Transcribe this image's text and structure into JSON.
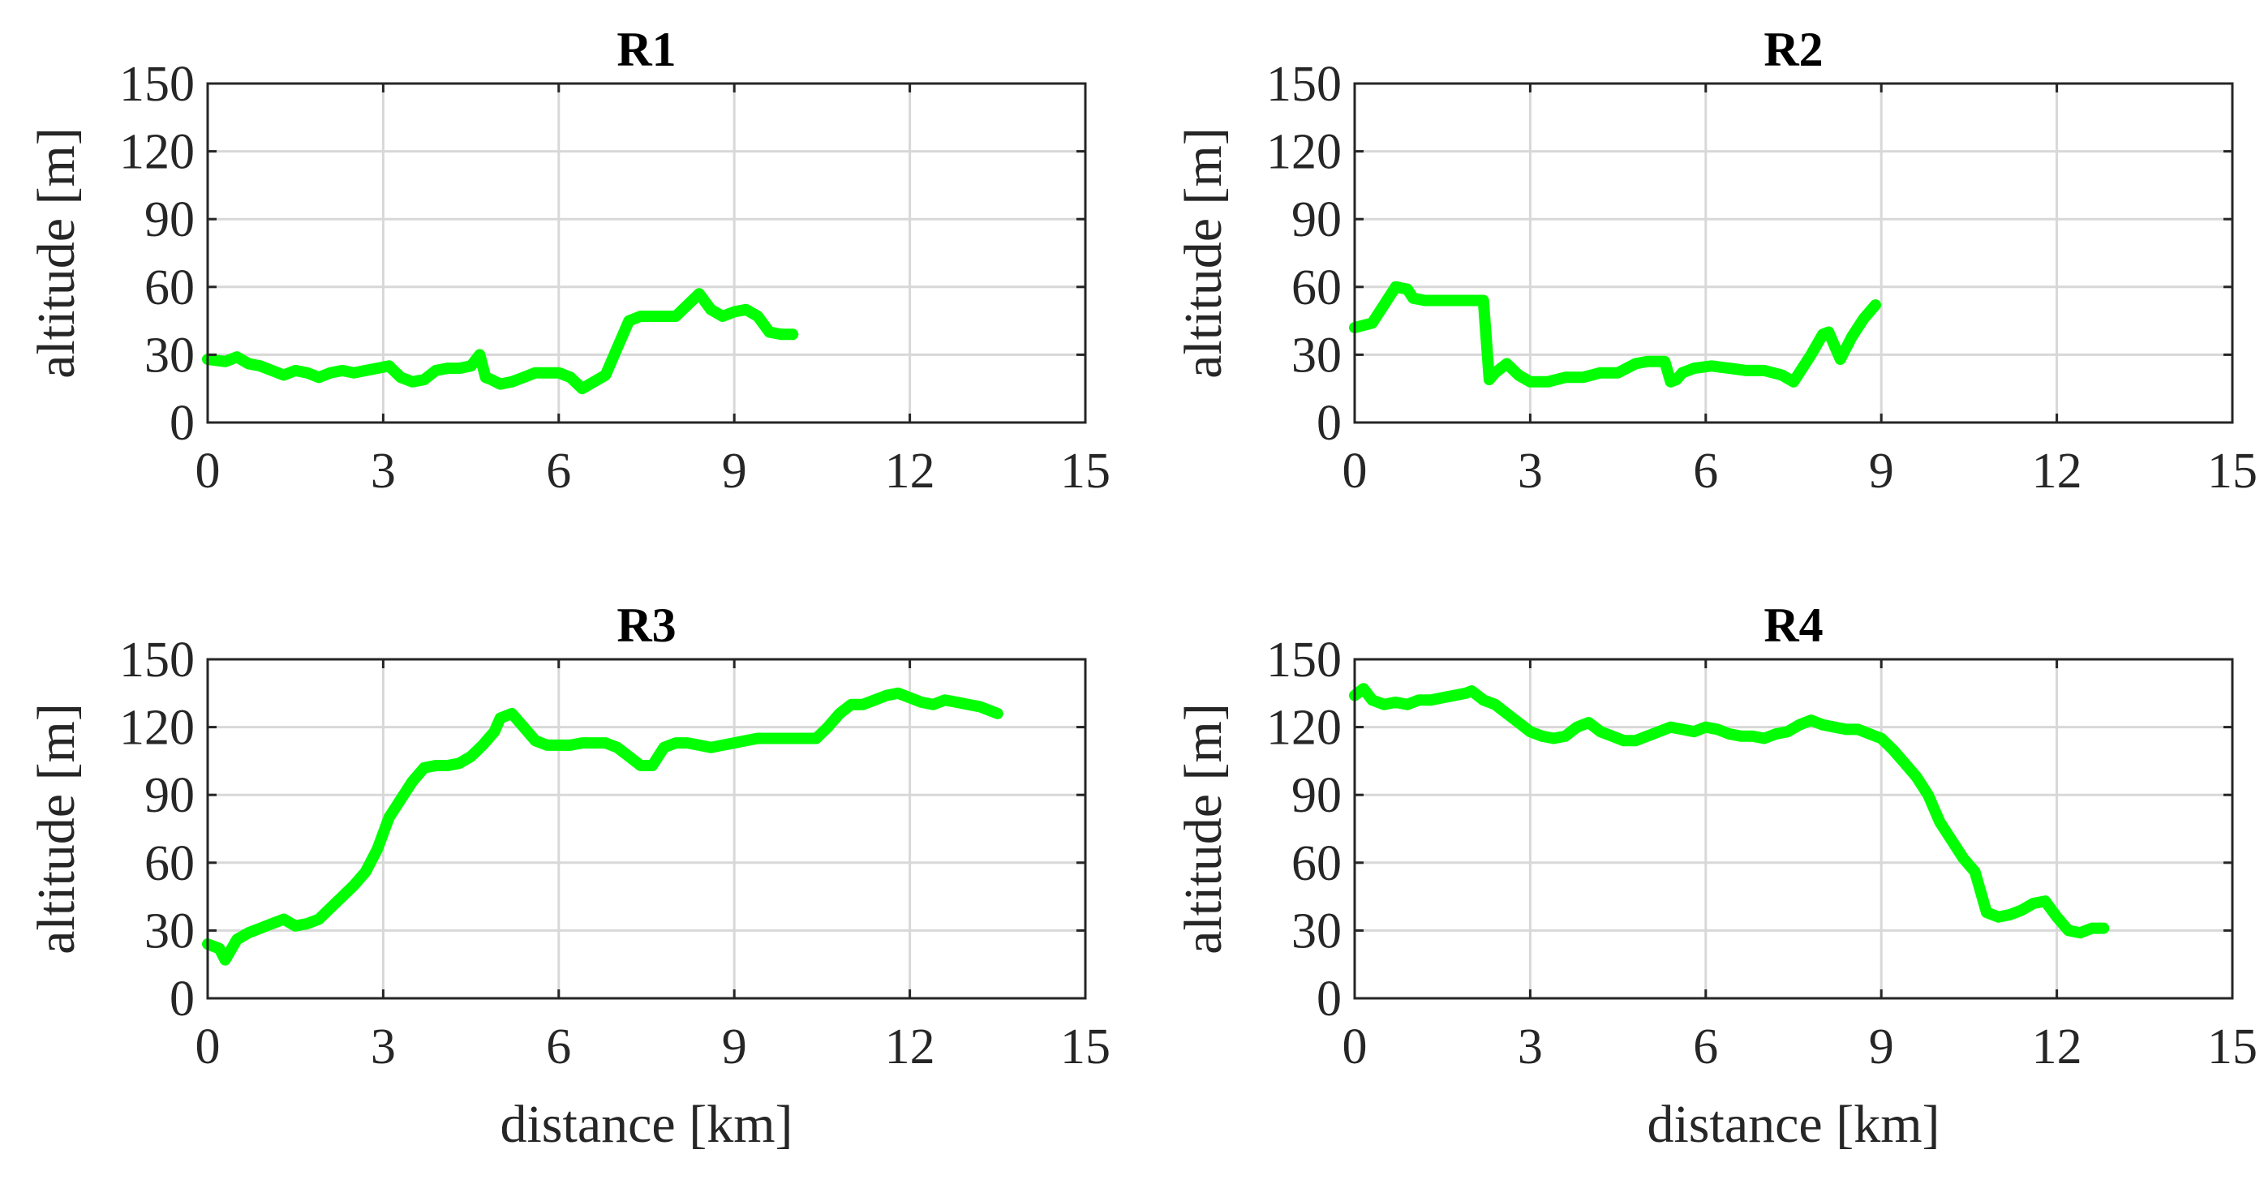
{
  "figure": {
    "background": "#ffffff",
    "line_color": "#00ff00"
  },
  "chart_data": [
    {
      "type": "line",
      "title": "R1",
      "xlabel": "",
      "ylabel": "altitude [m]",
      "xlim": [
        0,
        15
      ],
      "ylim": [
        0,
        150
      ],
      "xticks": [
        "0",
        "3",
        "6",
        "9",
        "12",
        "15"
      ],
      "yticks": [
        "0",
        "30",
        "60",
        "90",
        "120",
        "150"
      ],
      "grid": true,
      "series": [
        {
          "name": "R1",
          "x": [
            0,
            0.3,
            0.5,
            0.7,
            0.9,
            1.1,
            1.3,
            1.5,
            1.7,
            1.9,
            2.1,
            2.3,
            2.5,
            2.7,
            2.9,
            3.1,
            3.3,
            3.5,
            3.7,
            3.9,
            4.1,
            4.3,
            4.5,
            4.65,
            4.75,
            4.85,
            5.0,
            5.2,
            5.4,
            5.6,
            5.8,
            6.0,
            6.2,
            6.4,
            6.6,
            6.8,
            7.0,
            7.2,
            7.4,
            7.6,
            7.8,
            8.0,
            8.2,
            8.4,
            8.6,
            8.8,
            9.0,
            9.2,
            9.4,
            9.6,
            9.8,
            10.0
          ],
          "y": [
            28,
            27,
            29,
            26,
            25,
            23,
            21,
            23,
            22,
            20,
            22,
            23,
            22,
            23,
            24,
            25,
            20,
            18,
            19,
            23,
            24,
            24,
            25,
            30,
            20,
            19,
            17,
            18,
            20,
            22,
            22,
            22,
            20,
            15,
            18,
            21,
            33,
            45,
            47,
            47,
            47,
            47,
            52,
            57,
            50,
            47,
            49,
            50,
            47,
            40,
            39,
            39
          ]
        }
      ]
    },
    {
      "type": "line",
      "title": "R2",
      "xlabel": "",
      "ylabel": "altitude [m]",
      "xlim": [
        0,
        15
      ],
      "ylim": [
        0,
        150
      ],
      "xticks": [
        "0",
        "3",
        "6",
        "9",
        "12",
        "15"
      ],
      "yticks": [
        "0",
        "30",
        "60",
        "90",
        "120",
        "150"
      ],
      "grid": true,
      "series": [
        {
          "name": "R2",
          "x": [
            0,
            0.3,
            0.5,
            0.7,
            0.9,
            1.0,
            1.2,
            1.5,
            1.8,
            2.0,
            2.2,
            2.3,
            2.4,
            2.6,
            2.8,
            3.0,
            3.3,
            3.6,
            3.9,
            4.2,
            4.5,
            4.8,
            5.0,
            5.3,
            5.4,
            5.5,
            5.6,
            5.8,
            6.1,
            6.4,
            6.7,
            7.0,
            7.3,
            7.5,
            7.6,
            7.8,
            8.0,
            8.1,
            8.3,
            8.5,
            8.7,
            8.9
          ],
          "y": [
            42,
            44,
            52,
            60,
            59,
            55,
            54,
            54,
            54,
            54,
            54,
            19,
            22,
            26,
            21,
            18,
            18,
            20,
            20,
            22,
            22,
            26,
            27,
            27,
            18,
            19,
            22,
            24,
            25,
            24,
            23,
            23,
            21,
            18,
            22,
            30,
            39,
            40,
            28,
            38,
            46,
            52
          ]
        }
      ]
    },
    {
      "type": "line",
      "title": "R3",
      "xlabel": "distance [km]",
      "ylabel": "altitude [m]",
      "xlim": [
        0,
        15
      ],
      "ylim": [
        0,
        150
      ],
      "xticks": [
        "0",
        "3",
        "6",
        "9",
        "12",
        "15"
      ],
      "yticks": [
        "0",
        "30",
        "60",
        "90",
        "120",
        "150"
      ],
      "grid": true,
      "series": [
        {
          "name": "R3",
          "x": [
            0,
            0.2,
            0.3,
            0.5,
            0.7,
            0.9,
            1.1,
            1.3,
            1.5,
            1.7,
            1.9,
            2.1,
            2.3,
            2.5,
            2.7,
            2.9,
            3.1,
            3.3,
            3.5,
            3.7,
            3.9,
            4.1,
            4.3,
            4.5,
            4.7,
            4.9,
            5.0,
            5.2,
            5.4,
            5.6,
            5.8,
            6.0,
            6.2,
            6.4,
            6.6,
            6.8,
            7.0,
            7.2,
            7.4,
            7.6,
            7.8,
            8.0,
            8.2,
            8.4,
            8.6,
            8.8,
            9.0,
            9.2,
            9.4,
            9.6,
            9.8,
            10.0,
            10.2,
            10.4,
            10.6,
            10.8,
            11.0,
            11.2,
            11.4,
            11.6,
            11.8,
            12.0,
            12.2,
            12.4,
            12.6,
            12.8,
            13.0,
            13.2,
            13.5
          ],
          "y": [
            24,
            22,
            17,
            26,
            29,
            31,
            33,
            35,
            32,
            33,
            35,
            40,
            45,
            50,
            56,
            66,
            80,
            88,
            96,
            102,
            103,
            103,
            104,
            107,
            112,
            118,
            124,
            126,
            120,
            114,
            112,
            112,
            112,
            113,
            113,
            113,
            111,
            107,
            103,
            103,
            111,
            113,
            113,
            112,
            111,
            112,
            113,
            114,
            115,
            115,
            115,
            115,
            115,
            115,
            120,
            126,
            130,
            130,
            132,
            134,
            135,
            133,
            131,
            130,
            132,
            131,
            130,
            129,
            126
          ]
        }
      ]
    },
    {
      "type": "line",
      "title": "R4",
      "xlabel": "distance [km]",
      "ylabel": "altitude [m]",
      "xlim": [
        0,
        15
      ],
      "ylim": [
        0,
        150
      ],
      "xticks": [
        "0",
        "3",
        "6",
        "9",
        "12",
        "15"
      ],
      "yticks": [
        "0",
        "30",
        "60",
        "90",
        "120",
        "150"
      ],
      "grid": true,
      "series": [
        {
          "name": "R4",
          "x": [
            0,
            0.15,
            0.3,
            0.5,
            0.7,
            0.9,
            1.1,
            1.3,
            1.5,
            1.7,
            1.9,
            2.0,
            2.2,
            2.4,
            2.6,
            2.8,
            3.0,
            3.2,
            3.4,
            3.6,
            3.8,
            4.0,
            4.2,
            4.4,
            4.6,
            4.8,
            5.0,
            5.2,
            5.4,
            5.6,
            5.8,
            6.0,
            6.2,
            6.4,
            6.6,
            6.8,
            7.0,
            7.2,
            7.4,
            7.6,
            7.8,
            8.0,
            8.2,
            8.4,
            8.6,
            8.8,
            9.0,
            9.2,
            9.4,
            9.6,
            9.8,
            10.0,
            10.2,
            10.4,
            10.6,
            10.8,
            11.0,
            11.2,
            11.4,
            11.6,
            11.8,
            12.0,
            12.2,
            12.4,
            12.6,
            12.8
          ],
          "y": [
            134,
            137,
            132,
            130,
            131,
            130,
            132,
            132,
            133,
            134,
            135,
            136,
            132,
            130,
            126,
            122,
            118,
            116,
            115,
            116,
            120,
            122,
            118,
            116,
            114,
            114,
            116,
            118,
            120,
            119,
            118,
            120,
            119,
            117,
            116,
            116,
            115,
            117,
            118,
            121,
            123,
            121,
            120,
            119,
            119,
            117,
            115,
            110,
            104,
            98,
            90,
            78,
            70,
            62,
            56,
            38,
            36,
            37,
            39,
            42,
            43,
            36,
            30,
            29,
            31,
            31
          ]
        }
      ]
    }
  ]
}
